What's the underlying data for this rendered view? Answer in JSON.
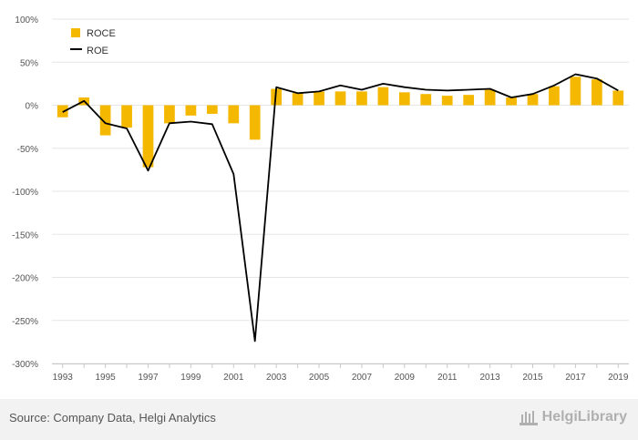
{
  "chart_data": {
    "type": "bar+line",
    "categories": [
      "1993",
      "1994",
      "1995",
      "1996",
      "1997",
      "1998",
      "1999",
      "2000",
      "2001",
      "2002",
      "2003",
      "2004",
      "2005",
      "2006",
      "2007",
      "2008",
      "2009",
      "2010",
      "2011",
      "2012",
      "2013",
      "2014",
      "2015",
      "2016",
      "2017",
      "2018",
      "2019"
    ],
    "x_tick_labels": [
      "1993",
      "1995",
      "1997",
      "1999",
      "2001",
      "2003",
      "2005",
      "2007",
      "2009",
      "2011",
      "2013",
      "2015",
      "2017",
      "2019"
    ],
    "series": [
      {
        "name": "ROCE",
        "type": "bar",
        "color": "#f5b800",
        "values": [
          -14,
          9,
          -35,
          -26,
          -72,
          -21,
          -12,
          -10,
          -21,
          -40,
          19,
          14,
          16,
          16,
          16,
          21,
          15,
          13,
          11,
          12,
          18,
          9,
          13,
          22,
          33,
          30,
          17
        ]
      },
      {
        "name": "ROE",
        "type": "line",
        "color": "#000000",
        "values": [
          -8,
          5,
          -21,
          -27,
          -76,
          -21,
          -19,
          -22,
          -80,
          -274,
          21,
          14,
          16,
          23,
          18,
          25,
          21,
          18,
          17,
          18,
          19,
          9,
          13,
          23,
          36,
          31,
          17
        ]
      }
    ],
    "y_ticks": [
      100,
      50,
      0,
      -50,
      -100,
      -150,
      -200,
      -250,
      -300
    ],
    "y_tick_labels": [
      "100%",
      "50%",
      "0%",
      "-50%",
      "-100%",
      "-150%",
      "-200%",
      "-250%",
      "-300%"
    ],
    "ylim": [
      -300,
      100
    ],
    "grid": true,
    "legend_position": "top-left"
  },
  "footer": {
    "source": "Source: Company Data, Helgi Analytics",
    "logo_text": "HelgiLibrary"
  }
}
